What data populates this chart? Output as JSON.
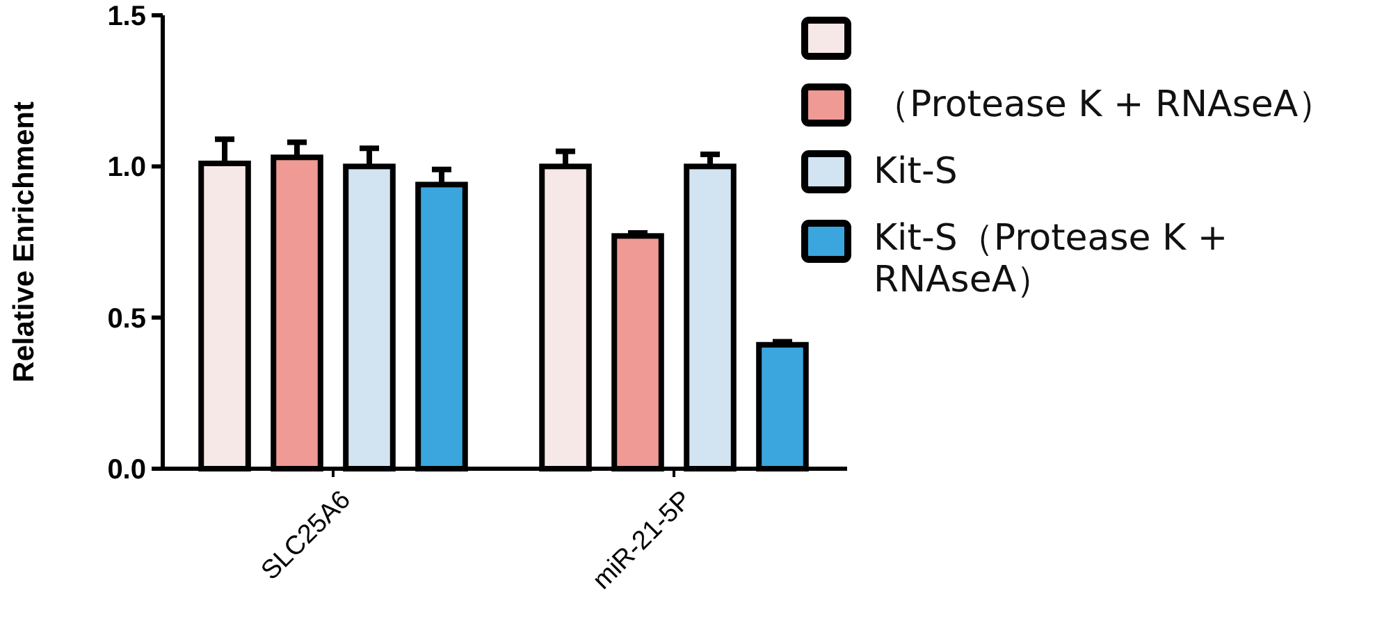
{
  "chart_data": {
    "type": "bar",
    "ylabel": "Relative Enrichment",
    "categories": [
      "SLC25A6",
      "miR-21-5P"
    ],
    "series": [
      {
        "color": "#f6e8e6",
        "values": [
          1.01,
          1.0
        ],
        "errors": [
          0.08,
          0.05
        ]
      },
      {
        "name": "（Protease K + RNAseA）",
        "color": "#ef9a94",
        "values": [
          1.03,
          0.77
        ],
        "errors": [
          0.05,
          0.01
        ]
      },
      {
        "name": "Kit-S",
        "color": "#d2e3f2",
        "values": [
          1.0,
          1.0
        ],
        "errors": [
          0.06,
          0.04
        ]
      },
      {
        "name": "Kit-S（Protease K + RNAseA）",
        "color": "#3aa6dd",
        "values": [
          0.94,
          0.41
        ],
        "errors": [
          0.05,
          0.01
        ]
      }
    ],
    "ylim": [
      0,
      1.5
    ],
    "yticks": [
      {
        "value": 0,
        "label": "0.0"
      },
      {
        "value": 0.5,
        "label": "0.5"
      },
      {
        "value": 1,
        "label": "1.0"
      },
      {
        "value": 1.5,
        "label": "1.5"
      }
    ],
    "legend": "right"
  }
}
